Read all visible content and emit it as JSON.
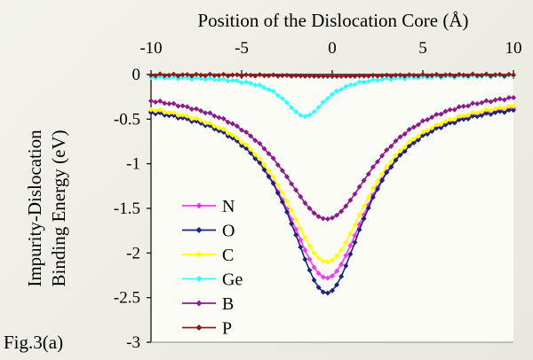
{
  "figure_label": "Fig.3(a)",
  "chart_data": {
    "type": "line",
    "xlabel": "Position of the Dislocation Core (Å)",
    "ylabel_lines": [
      "Impurity-Dislocation",
      "Binding  Energy  (eV)"
    ],
    "xlim": [
      -10,
      10
    ],
    "ylim": [
      -3,
      0
    ],
    "xticks": [
      -10,
      -5,
      0,
      5,
      10
    ],
    "yticks": [
      0,
      -0.5,
      -1,
      -1.5,
      -2,
      -2.5,
      -3
    ],
    "x_axis_position": "top",
    "grid": false,
    "legend_position": "bottom-left",
    "series": [
      {
        "name": "N",
        "color": "#ff33ff",
        "x0": -0.3,
        "minimum": -2.28,
        "gamma": 2.8,
        "left_edge": -0.26,
        "right_edge": -0.24
      },
      {
        "name": "O",
        "color": "#1a237e",
        "x0": -0.3,
        "minimum": -2.45,
        "gamma": 2.6,
        "left_edge": -0.28,
        "right_edge": -0.27
      },
      {
        "name": "C",
        "color": "#ffff00",
        "x0": -0.3,
        "minimum": -2.1,
        "gamma": 2.9,
        "left_edge": -0.24,
        "right_edge": -0.22
      },
      {
        "name": "Ge",
        "color": "#33ffff",
        "x0": -1.5,
        "minimum": -0.47,
        "gamma": 1.4,
        "left_edge": -0.02,
        "right_edge": -0.01
      },
      {
        "name": "B",
        "color": "#8b1a8b",
        "x0": -0.3,
        "minimum": -1.62,
        "gamma": 3.2,
        "left_edge": -0.15,
        "right_edge": -0.13
      },
      {
        "name": "P",
        "color": "#8b1a1a",
        "x0": 0,
        "minimum": -0.02,
        "gamma": 3.0,
        "left_edge": -0.005,
        "right_edge": -0.005
      }
    ]
  }
}
